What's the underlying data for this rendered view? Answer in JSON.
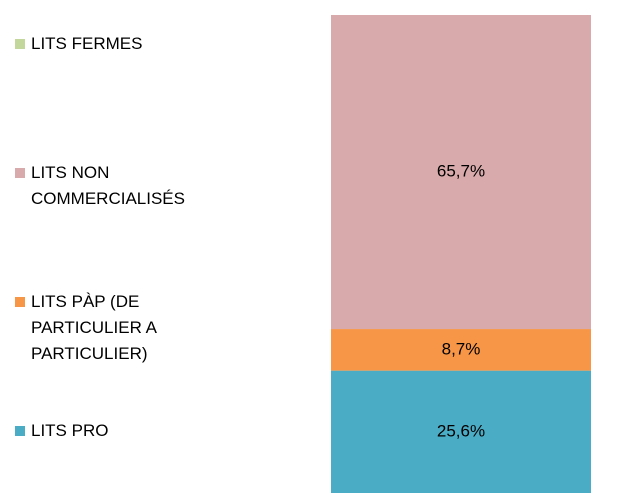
{
  "chart_data": {
    "type": "stacked-bar",
    "series": [
      {
        "name": "LITS PRO",
        "color": "#4bacc6",
        "values": [
          25.6
        ],
        "value_labels": [
          "25,6%"
        ]
      },
      {
        "name": "LITS PÀP (DE PARTICULIER A PARTICULIER)",
        "color": "#f79646",
        "values": [
          8.7
        ],
        "value_labels": [
          "8,7%"
        ]
      },
      {
        "name": "LITS NON COMMERCIALISÉS",
        "color": "#d9aaab",
        "values": [
          65.7
        ],
        "value_labels": [
          "65,7%"
        ]
      },
      {
        "name": "LITS FERMES",
        "color": "#c3d69b",
        "values": [
          0
        ],
        "value_labels": [
          null
        ]
      }
    ]
  }
}
